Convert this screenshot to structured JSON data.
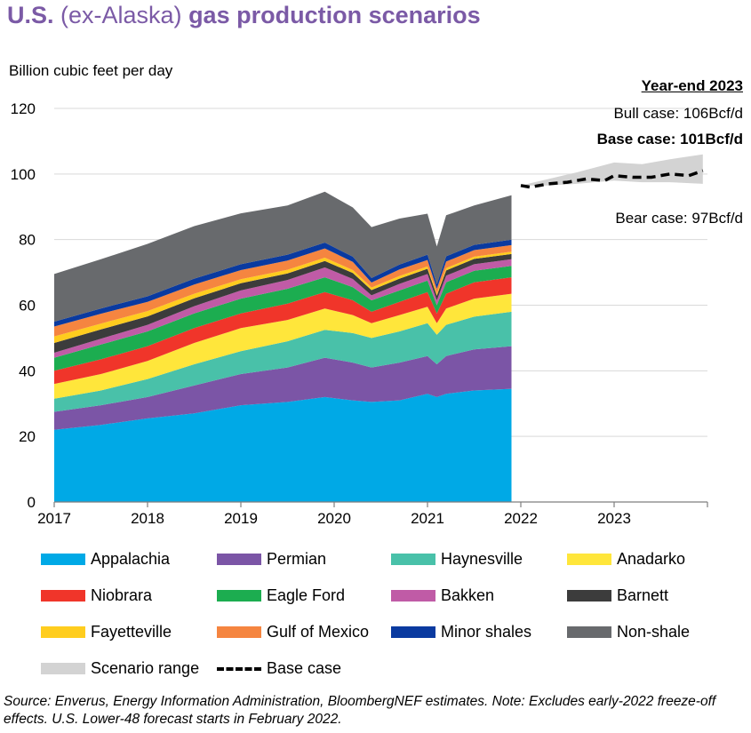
{
  "title": {
    "bold1": "U.S.",
    "light": " (ex-Alaska) ",
    "bold2": "gas production scenarios"
  },
  "ylabel": "Billion cubic feet per day",
  "annotations": {
    "year_end_title": "Year-end 2023",
    "bull": "Bull case: 106Bcf/d",
    "base": "Base case: 101Bcf/d",
    "bear": "Bear case: 97Bcf/d"
  },
  "source": "Source: Enverus, Energy Information Administration, BloombergNEF estimates. Note: Excludes early-2022 freeze-off effects. U.S. Lower-48 forecast starts in February 2022.",
  "chart_data": {
    "type": "area",
    "title": "U.S. (ex-Alaska) gas production scenarios",
    "ylabel": "Billion cubic feet per day",
    "ylim": [
      0,
      120
    ],
    "yticks": [
      0,
      20,
      40,
      60,
      80,
      100,
      120
    ],
    "xlim": [
      2017,
      2024
    ],
    "xticks": [
      "2017",
      "2018",
      "2019",
      "2020",
      "2021",
      "2022",
      "2023"
    ],
    "grid": "horizontal",
    "legend_position": "bottom",
    "x": [
      2017.0,
      2017.5,
      2018.0,
      2018.5,
      2019.0,
      2019.5,
      2019.9,
      2020.2,
      2020.4,
      2020.7,
      2021.0,
      2021.1,
      2021.2,
      2021.5,
      2021.9
    ],
    "series": [
      {
        "name": "Appalachia",
        "color": "#00a9e6",
        "values": [
          22.0,
          23.5,
          25.5,
          27.0,
          29.5,
          30.5,
          32.0,
          31.0,
          30.5,
          31.0,
          33.0,
          32.0,
          33.0,
          34.0,
          34.5
        ]
      },
      {
        "name": "Permian",
        "color": "#7b55a6",
        "values": [
          5.5,
          6.0,
          6.5,
          8.5,
          9.5,
          10.5,
          12.0,
          11.5,
          10.5,
          11.5,
          11.5,
          10.0,
          11.5,
          12.5,
          13.0
        ]
      },
      {
        "name": "Haynesville",
        "color": "#49c1a9",
        "values": [
          4.0,
          4.5,
          5.5,
          6.5,
          7.0,
          8.0,
          8.5,
          9.0,
          9.0,
          9.5,
          10.0,
          9.0,
          9.5,
          10.0,
          10.5
        ]
      },
      {
        "name": "Anadarko",
        "color": "#ffe63b",
        "values": [
          4.5,
          5.0,
          5.5,
          6.5,
          7.0,
          6.5,
          6.5,
          5.5,
          4.5,
          5.0,
          5.0,
          3.5,
          5.0,
          5.5,
          5.5
        ]
      },
      {
        "name": "Niobrara",
        "color": "#f0352a",
        "values": [
          4.0,
          4.5,
          4.5,
          4.5,
          4.5,
          5.0,
          5.0,
          4.5,
          3.5,
          4.0,
          4.5,
          3.0,
          4.5,
          5.0,
          5.0
        ]
      },
      {
        "name": "Eagle Ford",
        "color": "#1cad50",
        "values": [
          4.0,
          4.5,
          4.5,
          4.5,
          4.5,
          4.5,
          4.5,
          4.0,
          3.5,
          3.5,
          3.5,
          2.5,
          3.5,
          3.5,
          3.5
        ]
      },
      {
        "name": "Bakken",
        "color": "#c05ba6",
        "values": [
          1.5,
          1.8,
          2.0,
          2.2,
          2.5,
          2.7,
          3.0,
          2.5,
          1.5,
          2.0,
          2.0,
          1.5,
          2.0,
          2.0,
          2.0
        ]
      },
      {
        "name": "Barnett",
        "color": "#3c3c3c",
        "values": [
          3.0,
          2.8,
          2.6,
          2.4,
          2.2,
          2.0,
          2.0,
          1.8,
          1.6,
          1.6,
          1.6,
          1.4,
          1.6,
          1.6,
          1.6
        ]
      },
      {
        "name": "Fayetteville",
        "color": "#ffcd1e",
        "values": [
          2.0,
          1.8,
          1.6,
          1.4,
          1.2,
          1.1,
          1.0,
          0.9,
          0.8,
          0.8,
          0.7,
          0.6,
          0.7,
          0.7,
          0.7
        ]
      },
      {
        "name": "Gulf of Mexico",
        "color": "#f58540",
        "values": [
          3.0,
          3.0,
          2.8,
          2.8,
          2.8,
          2.8,
          2.8,
          2.5,
          1.5,
          2.0,
          2.0,
          1.5,
          2.0,
          2.0,
          2.0
        ]
      },
      {
        "name": "Minor shales",
        "color": "#0a3aa0",
        "values": [
          1.5,
          1.6,
          1.7,
          1.8,
          1.8,
          1.8,
          1.8,
          1.6,
          1.4,
          1.5,
          1.6,
          1.4,
          1.6,
          1.6,
          1.7
        ]
      },
      {
        "name": "Non-shale",
        "color": "#686a6d",
        "values": [
          14.5,
          15.0,
          16.0,
          16.0,
          15.5,
          15.0,
          15.5,
          15.0,
          15.5,
          14.0,
          12.5,
          11.5,
          12.5,
          12.0,
          13.5
        ]
      }
    ],
    "scenario_range": {
      "name": "Scenario range",
      "color": "#d3d3d3",
      "x": [
        2022.0,
        2022.3,
        2022.6,
        2023.0,
        2023.3,
        2023.6,
        2023.95
      ],
      "low": [
        96.5,
        96.5,
        97.0,
        98.0,
        97.5,
        97.5,
        97.0
      ],
      "high": [
        96.5,
        98.5,
        100.5,
        103.5,
        103.0,
        104.5,
        106.0
      ]
    },
    "base_case": {
      "name": "Base case",
      "x": [
        2022.0,
        2022.1,
        2022.3,
        2022.5,
        2022.7,
        2022.9,
        2023.0,
        2023.2,
        2023.4,
        2023.6,
        2023.8,
        2023.95
      ],
      "values": [
        96.5,
        96.0,
        97.0,
        97.5,
        98.5,
        98.0,
        99.5,
        99.0,
        99.0,
        100.0,
        99.5,
        101.0
      ]
    }
  }
}
